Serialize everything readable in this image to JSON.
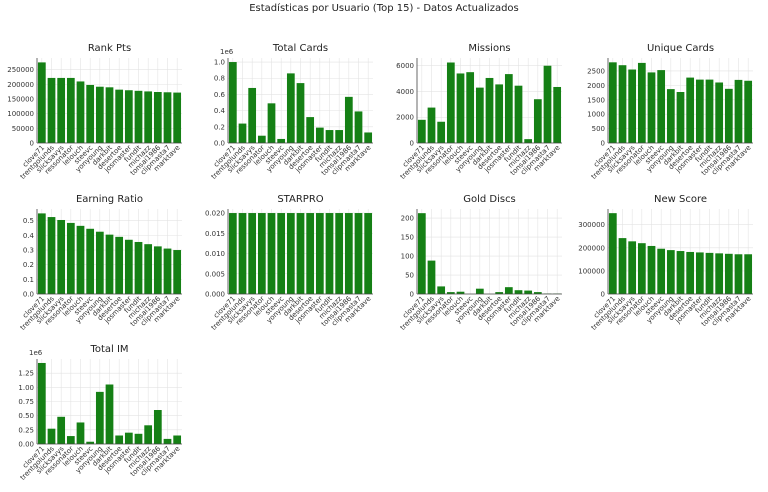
{
  "figure": {
    "suptitle": "Estadísticas por Usuario (Top 15) - Datos Actualizados"
  },
  "chart_data": [
    {
      "type": "bar",
      "title": "Rank Pts",
      "categories": [
        "clove71",
        "trentgolunds",
        "slicksavys",
        "ressonator",
        "lelouch",
        "steevc",
        "yonyoung",
        "darkbit",
        "desertoe",
        "josmaster",
        "fundit",
        "michazz",
        "tonsai1986",
        "clipmasta7",
        "marktave"
      ],
      "values": [
        275000,
        222000,
        222000,
        222000,
        210000,
        198000,
        192000,
        190000,
        182000,
        180000,
        178000,
        176000,
        174000,
        173000,
        172000
      ],
      "ylim": [
        0,
        290000
      ],
      "yticks": [
        0,
        50000,
        100000,
        150000,
        200000,
        250000
      ],
      "yticklabels": [
        "0",
        "50000",
        "100000",
        "150000",
        "200000",
        "250000"
      ],
      "sci": ""
    },
    {
      "type": "bar",
      "title": "Total Cards",
      "categories": [
        "clove71",
        "trentgolunds",
        "slicksavys",
        "ressonator",
        "lelouch",
        "steevc",
        "yonyoung",
        "darkbit",
        "desertoe",
        "josmaster",
        "fundit",
        "michazz",
        "tonsai1986",
        "clipmasta7",
        "marktave"
      ],
      "values": [
        1.0,
        0.24,
        0.68,
        0.09,
        0.49,
        0.05,
        0.86,
        0.74,
        0.32,
        0.19,
        0.16,
        0.16,
        0.57,
        0.39,
        0.13
      ],
      "ylim": [
        0,
        1.05
      ],
      "yticks": [
        0,
        0.2,
        0.4,
        0.6,
        0.8,
        1.0
      ],
      "yticklabels": [
        "0.0",
        "0.2",
        "0.4",
        "0.6",
        "0.8",
        "1.0"
      ],
      "sci": "1e6"
    },
    {
      "type": "bar",
      "title": "Missions",
      "categories": [
        "clove71",
        "trentgolunds",
        "slicksavys",
        "ressonator",
        "lelouch",
        "steevc",
        "yonyoung",
        "darkbit",
        "desertoe",
        "josmaster",
        "fundit",
        "michazz",
        "tonsai1986",
        "clipmasta7",
        "marktave"
      ],
      "values": [
        1800,
        2750,
        1650,
        6250,
        5400,
        5500,
        4300,
        5050,
        4550,
        5350,
        4450,
        300,
        3400,
        6000,
        4350
      ],
      "ylim": [
        0,
        6600
      ],
      "yticks": [
        0,
        2000,
        4000,
        6000
      ],
      "yticklabels": [
        "0",
        "2000",
        "4000",
        "6000"
      ],
      "sci": ""
    },
    {
      "type": "bar",
      "title": "Unique Cards",
      "categories": [
        "clove71",
        "trentgolunds",
        "slicksavys",
        "ressonator",
        "lelouch",
        "steevc",
        "yonyoung",
        "darkbit",
        "desertoe",
        "josmaster",
        "fundit",
        "michazz",
        "tonsai1986",
        "clipmasta7",
        "marktave"
      ],
      "values": [
        2800,
        2700,
        2550,
        2780,
        2450,
        2530,
        1870,
        1770,
        2270,
        2200,
        2200,
        2100,
        1880,
        2190,
        2160
      ],
      "ylim": [
        0,
        2950
      ],
      "yticks": [
        0,
        500,
        1000,
        1500,
        2000,
        2500
      ],
      "yticklabels": [
        "0",
        "500",
        "1000",
        "1500",
        "2000",
        "2500"
      ],
      "sci": ""
    },
    {
      "type": "bar",
      "title": "Earning Ratio",
      "categories": [
        "clove71",
        "trentgolunds",
        "slicksavys",
        "ressonator",
        "lelouch",
        "steevc",
        "yonyoung",
        "darkbit",
        "desertoe",
        "josmaster",
        "fundit",
        "michazz",
        "tonsai1986",
        "clipmasta7",
        "marktave"
      ],
      "values": [
        0.55,
        0.525,
        0.505,
        0.485,
        0.465,
        0.445,
        0.425,
        0.405,
        0.39,
        0.37,
        0.355,
        0.34,
        0.325,
        0.31,
        0.3
      ],
      "ylim": [
        0,
        0.58
      ],
      "yticks": [
        0,
        0.1,
        0.2,
        0.3,
        0.4,
        0.5
      ],
      "yticklabels": [
        "0.0",
        "0.1",
        "0.2",
        "0.3",
        "0.4",
        "0.5"
      ],
      "sci": ""
    },
    {
      "type": "bar",
      "title": "STARPRO",
      "categories": [
        "clove71",
        "trentgolunds",
        "slicksavys",
        "ressonator",
        "lelouch",
        "steevc",
        "yonyoung",
        "darkbit",
        "desertoe",
        "josmaster",
        "fundit",
        "michazz",
        "tonsai1986",
        "clipmasta7",
        "marktave"
      ],
      "values": [
        0.02,
        0.02,
        0.02,
        0.02,
        0.02,
        0.02,
        0.02,
        0.02,
        0.02,
        0.02,
        0.02,
        0.02,
        0.02,
        0.02,
        0.02
      ],
      "ylim": [
        0,
        0.021
      ],
      "yticks": [
        0,
        0.005,
        0.01,
        0.015,
        0.02
      ],
      "yticklabels": [
        "0.000",
        "0.005",
        "0.010",
        "0.015",
        "0.020"
      ],
      "sci": ""
    },
    {
      "type": "bar",
      "title": "Gold Discs",
      "categories": [
        "clove71",
        "trentgolunds",
        "slicksavys",
        "ressonator",
        "lelouch",
        "steevc",
        "yonyoung",
        "darkbit",
        "desertoe",
        "josmaster",
        "fundit",
        "michazz",
        "tonsai1986",
        "clipmasta7",
        "marktave"
      ],
      "values": [
        213,
        88,
        20,
        5,
        6,
        0,
        14,
        0,
        5,
        18,
        10,
        9,
        5,
        1,
        1
      ],
      "ylim": [
        0,
        224
      ],
      "yticks": [
        0,
        50,
        100,
        150,
        200
      ],
      "yticklabels": [
        "0",
        "50",
        "100",
        "150",
        "200"
      ],
      "sci": ""
    },
    {
      "type": "bar",
      "title": "New Score",
      "categories": [
        "clove71",
        "trentgolunds",
        "slicksavys",
        "ressonator",
        "lelouch",
        "steevc",
        "yonyoung",
        "darkbit",
        "desertoe",
        "josmaster",
        "fundit",
        "michazz",
        "tonsai1986",
        "clipmasta7",
        "marktave"
      ],
      "values": [
        350000,
        242000,
        228000,
        220000,
        208000,
        196000,
        190000,
        186000,
        182000,
        180000,
        178000,
        176000,
        174000,
        172000,
        172000
      ],
      "ylim": [
        0,
        368000
      ],
      "yticks": [
        0,
        100000,
        200000,
        300000
      ],
      "yticklabels": [
        "0",
        "100000",
        "200000",
        "300000"
      ],
      "sci": ""
    },
    {
      "type": "bar",
      "title": "Total IM",
      "categories": [
        "clove71",
        "trentgolunds",
        "slicksavys",
        "ressonator",
        "lelouch",
        "steevc",
        "yonyoung",
        "darkbit",
        "desertoe",
        "josmaster",
        "fundit",
        "michazz",
        "tonsai1986",
        "clipmasta7",
        "marktave"
      ],
      "values": [
        1.43,
        0.27,
        0.48,
        0.14,
        0.38,
        0.04,
        0.92,
        1.05,
        0.15,
        0.2,
        0.18,
        0.33,
        0.6,
        0.09,
        0.15
      ],
      "ylim": [
        0,
        1.5
      ],
      "yticks": [
        0,
        0.25,
        0.5,
        0.75,
        1.0,
        1.25
      ],
      "yticklabels": [
        "0.00",
        "0.25",
        "0.50",
        "0.75",
        "1.00",
        "1.25"
      ],
      "sci": "1e6"
    }
  ]
}
